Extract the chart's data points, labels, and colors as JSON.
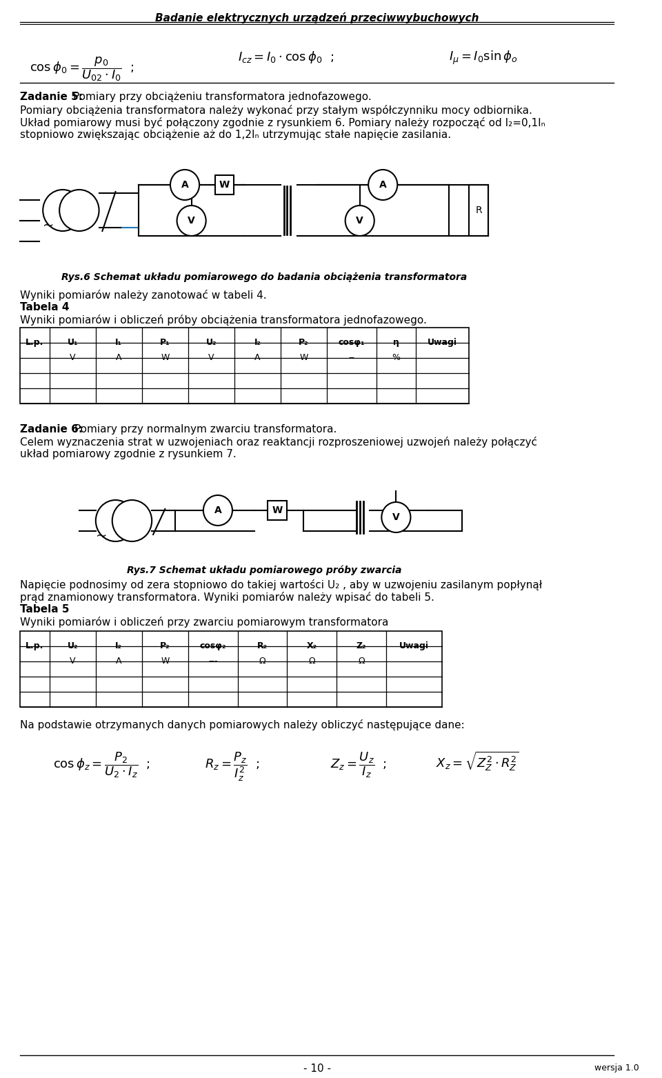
{
  "bg_color": "#ffffff",
  "title": "Badanie elektrycznych urządzeń przeciwwybuchowych",
  "page_number": "- 10 -",
  "version": "wersja 1.0",
  "formula1": "$\\cos\\phi_0 = \\dfrac{p_0}{U_{02} \\cdot I_0}$  ;",
  "formula2": "$I_{cz} = I_0 \\cdot \\cos\\phi_0$  ;",
  "formula3": "$I_{\\mu} = I_0 \\sin\\phi_o$",
  "zadanie5_bold": "Zadanie 5:",
  "zadanie5_rest": " Pomiary przy obciążeniu transformatora jednofazowego.",
  "para1": "Pomiary obciążenia transformatora należy wykonać przy stałym współczynniku mocy odbiornika.",
  "para2": "Układ pomiarowy musi być połączony zgodnie z rysunkiem 6. Pomiary należy rozpocząć od I₂=0,1Iₙ",
  "para3": "stopniowo zwiększając obciążenie aż do 1,2Iₙ utrzymując stałe napięcie zasilania.",
  "rys6_caption": "Rys.6 Schemat układu pomiarowego do badania obciążenia transformatora",
  "wyniki1": "Wyniki pomiarów należy zanotować w tabeli 4.",
  "tabela4_title": "Tabela 4",
  "tabela4_desc": "Wyniki pomiarów i obliczeń próby obciążenia transformatora jednofazowego.",
  "table1_headers": [
    "L.p.",
    "U₁",
    "I₁",
    "P₁",
    "U₂",
    "I₂",
    "P₂",
    "cosφ₁",
    "η",
    "Uwagi"
  ],
  "table1_units": [
    "",
    "V",
    "A",
    "W",
    "V",
    "A",
    "W",
    "--",
    "%",
    ""
  ],
  "table1_rows": 2,
  "zadanie6_bold": "Zadanie 6:",
  "zadanie6_rest": " Pomiary przy normalnym zwarciu transformatora.",
  "para4": "Celem wyznaczenia strat w uzwojeniach oraz reaktancji rozproszeniowej uzwojeń należy połączyć",
  "para5": "układ pomiarowy zgodnie z rysunkiem 7.",
  "rys7_caption": "Rys.7 Schemat układu pomiarowego próby zwarcia",
  "para6": "Napięcie podnosimy od zera stopniowo do takiej wartości U₂ , aby w uzwojeniu zasilanym popłynął",
  "para7": "prąd znamionowy transformatora. Wyniki pomiarów należy wpisać do tabeli 5.",
  "tabela5_title": "Tabela 5",
  "tabela5_desc": "Wyniki pomiarów i obliczeń przy zwarciu pomiarowym transformatora",
  "table2_headers": [
    "L.p.",
    "U₂",
    "I₂",
    "P₂",
    "cosφ₂",
    "R₂",
    "X₂",
    "Z₂",
    "Uwagi"
  ],
  "table2_units": [
    "",
    "V",
    "A",
    "W",
    "---",
    "Ω",
    "Ω",
    "Ω",
    ""
  ],
  "table2_rows": 2,
  "para8": "Na podstawie otrzymanych danych pomiarowych należy obliczyć następujące dane:",
  "formula_bottom1": "$\\cos\\phi_z = \\dfrac{P_2}{U_2 \\cdot I_z}$  ;",
  "formula_bottom2": "$R_z = \\dfrac{P_z}{I_z^2}$  ;",
  "formula_bottom3": "$Z_z = \\dfrac{U_z}{I_z}$  ;",
  "formula_bottom4": "$X_z = \\sqrt{Z_Z^2 \\cdot R_Z^2}$"
}
